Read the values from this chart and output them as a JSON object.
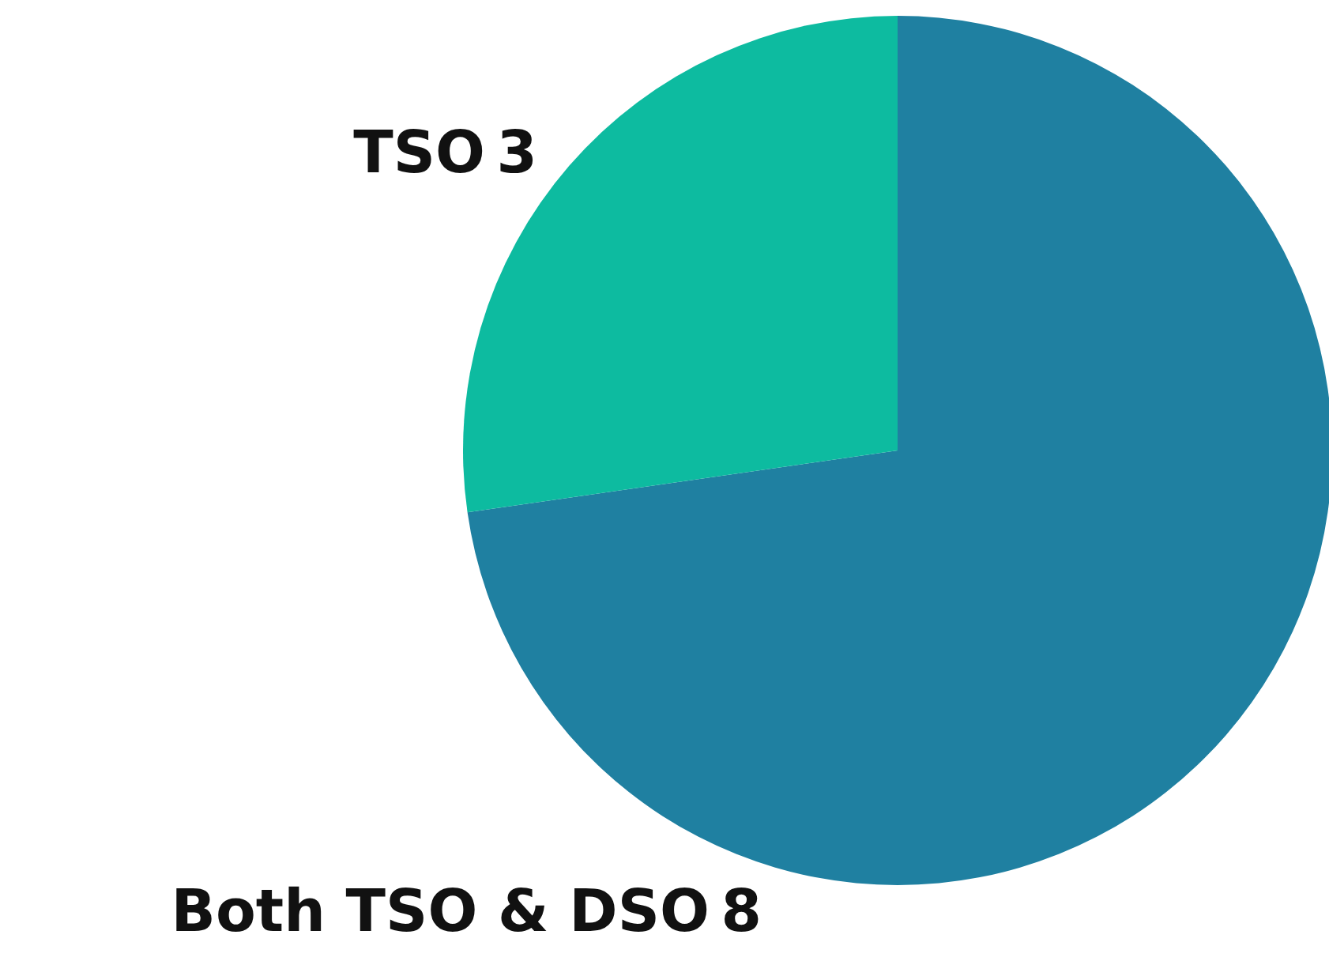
{
  "chart_data": {
    "type": "pie",
    "categories": [
      "Both TSO & DSO",
      "TSO"
    ],
    "values": [
      8,
      3
    ],
    "colors": [
      "#1f80a1",
      "#0dbba0"
    ],
    "data_labels": true
  }
}
